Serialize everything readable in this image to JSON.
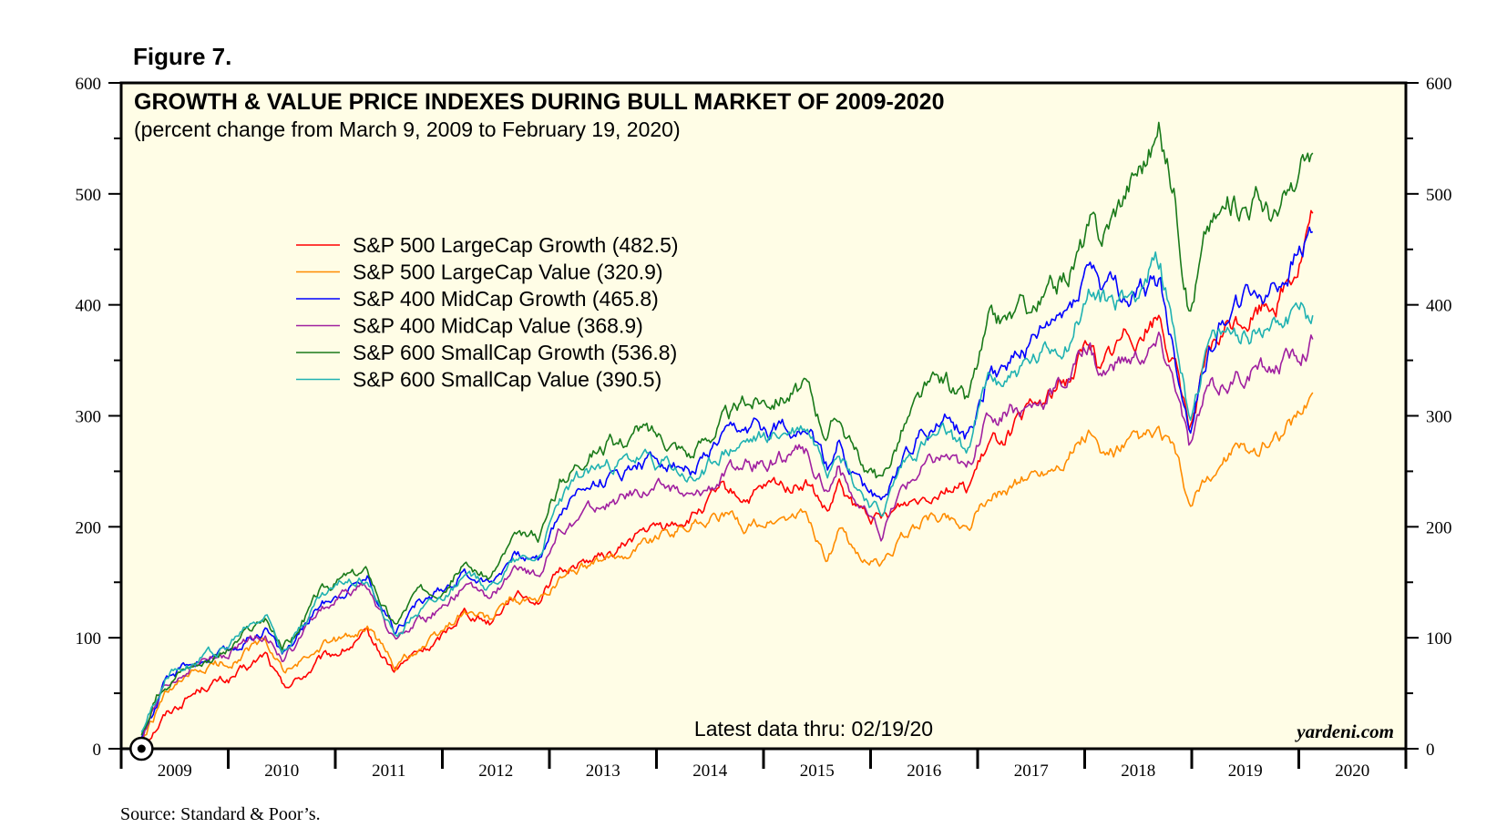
{
  "figure_label": "Figure 7.",
  "source": "Source: Standard & Poor’s.",
  "brand": "yardeni.com",
  "colors": {
    "plot_background": "#fffde6",
    "axis": "#000000"
  },
  "chart_data": {
    "type": "line",
    "title": "GROWTH & VALUE PRICE INDEXES DURING BULL MARKET OF 2009-2020",
    "subtitle": "(percent change from March 9, 2009 to February 19, 2020)",
    "note": "Latest data thru: 02/19/20",
    "xlabel": "",
    "ylabel": "",
    "xlim": [
      2009.0,
      2021.0
    ],
    "ylim": [
      0,
      600
    ],
    "y_ticks": [
      0,
      100,
      200,
      300,
      400,
      500,
      600
    ],
    "x_tick_labels": [
      "2009",
      "2010",
      "2011",
      "2012",
      "2013",
      "2014",
      "2015",
      "2016",
      "2017",
      "2018",
      "2019",
      "2020"
    ],
    "legend_position": "upper-left",
    "start_marker": {
      "x": 2009.19,
      "y": 0
    },
    "series": [
      {
        "name": "S&P 500 LargeCap Growth (482.5)",
        "color": "#ff0000",
        "x": [
          2009.19,
          2009.4,
          2009.6,
          2009.8,
          2010.0,
          2010.2,
          2010.35,
          2010.5,
          2010.65,
          2010.85,
          2011.1,
          2011.3,
          2011.55,
          2011.75,
          2011.95,
          2012.2,
          2012.45,
          2012.65,
          2012.9,
          2013.1,
          2013.35,
          2013.6,
          2013.85,
          2014.1,
          2014.35,
          2014.6,
          2014.85,
          2015.1,
          2015.4,
          2015.6,
          2015.7,
          2015.85,
          2016.1,
          2016.3,
          2016.5,
          2016.7,
          2016.9,
          2017.1,
          2017.35,
          2017.6,
          2017.85,
          2018.05,
          2018.15,
          2018.4,
          2018.7,
          2018.85,
          2018.98,
          2019.15,
          2019.35,
          2019.6,
          2019.8,
          2020.0,
          2020.13
        ],
        "y": [
          5,
          30,
          45,
          58,
          62,
          72,
          85,
          55,
          62,
          78,
          90,
          100,
          70,
          85,
          95,
          125,
          115,
          140,
          135,
          160,
          170,
          175,
          195,
          200,
          210,
          230,
          225,
          235,
          240,
          210,
          235,
          215,
          205,
          220,
          230,
          240,
          235,
          270,
          290,
          310,
          335,
          370,
          340,
          375,
          390,
          340,
          290,
          350,
          380,
          395,
          410,
          440,
          482.5
        ]
      },
      {
        "name": "S&P 500 LargeCap Value (320.9)",
        "color": "#ff8c00",
        "x": [
          2009.19,
          2009.4,
          2009.6,
          2009.8,
          2010.0,
          2010.2,
          2010.35,
          2010.5,
          2010.65,
          2010.85,
          2011.1,
          2011.3,
          2011.55,
          2011.75,
          2011.95,
          2012.2,
          2012.45,
          2012.65,
          2012.9,
          2013.1,
          2013.35,
          2013.6,
          2013.85,
          2014.1,
          2014.35,
          2014.6,
          2014.85,
          2015.1,
          2015.4,
          2015.6,
          2015.7,
          2015.85,
          2016.1,
          2016.3,
          2016.5,
          2016.7,
          2016.9,
          2017.1,
          2017.35,
          2017.6,
          2017.85,
          2018.05,
          2018.15,
          2018.4,
          2018.7,
          2018.85,
          2018.98,
          2019.15,
          2019.35,
          2019.6,
          2019.8,
          2020.0,
          2020.13
        ],
        "y": [
          5,
          45,
          60,
          72,
          78,
          90,
          95,
          70,
          75,
          90,
          100,
          110,
          75,
          90,
          100,
          125,
          115,
          135,
          130,
          155,
          165,
          170,
          185,
          195,
          205,
          210,
          200,
          205,
          210,
          170,
          195,
          175,
          165,
          190,
          205,
          210,
          200,
          225,
          240,
          250,
          265,
          285,
          260,
          270,
          280,
          265,
          215,
          240,
          265,
          270,
          285,
          300,
          320.9
        ]
      },
      {
        "name": "S&P 400 MidCap Growth (465.8)",
        "color": "#0000ff",
        "x": [
          2009.19,
          2009.4,
          2009.6,
          2009.8,
          2010.0,
          2010.2,
          2010.35,
          2010.5,
          2010.65,
          2010.85,
          2011.1,
          2011.3,
          2011.55,
          2011.75,
          2011.95,
          2012.2,
          2012.45,
          2012.65,
          2012.9,
          2013.1,
          2013.35,
          2013.6,
          2013.85,
          2014.1,
          2014.35,
          2014.6,
          2014.85,
          2015.1,
          2015.4,
          2015.6,
          2015.7,
          2015.85,
          2016.1,
          2016.3,
          2016.5,
          2016.7,
          2016.9,
          2017.1,
          2017.35,
          2017.6,
          2017.85,
          2018.05,
          2018.15,
          2018.4,
          2018.7,
          2018.85,
          2018.98,
          2019.15,
          2019.35,
          2019.6,
          2019.8,
          2020.0,
          2020.13
        ],
        "y": [
          10,
          55,
          75,
          82,
          85,
          100,
          110,
          85,
          100,
          130,
          145,
          155,
          110,
          130,
          140,
          160,
          150,
          175,
          170,
          215,
          240,
          245,
          260,
          260,
          250,
          275,
          285,
          290,
          295,
          250,
          275,
          245,
          220,
          265,
          290,
          295,
          280,
          335,
          355,
          370,
          395,
          440,
          420,
          405,
          420,
          350,
          290,
          360,
          400,
          410,
          420,
          445,
          465.8
        ]
      },
      {
        "name": "S&P 400 MidCap Value (368.9)",
        "color": "#a020a0",
        "x": [
          2009.19,
          2009.4,
          2009.6,
          2009.8,
          2010.0,
          2010.2,
          2010.35,
          2010.5,
          2010.65,
          2010.85,
          2011.1,
          2011.3,
          2011.55,
          2011.75,
          2011.95,
          2012.2,
          2012.45,
          2012.65,
          2012.9,
          2013.1,
          2013.35,
          2013.6,
          2013.85,
          2014.1,
          2014.35,
          2014.6,
          2014.85,
          2015.1,
          2015.4,
          2015.6,
          2015.7,
          2015.85,
          2016.1,
          2016.3,
          2016.5,
          2016.7,
          2016.9,
          2017.1,
          2017.35,
          2017.6,
          2017.85,
          2018.05,
          2018.15,
          2018.4,
          2018.7,
          2018.85,
          2018.98,
          2019.15,
          2019.35,
          2019.6,
          2019.8,
          2020.0,
          2020.13
        ],
        "y": [
          10,
          50,
          70,
          80,
          83,
          98,
          105,
          80,
          95,
          125,
          138,
          148,
          95,
          115,
          125,
          145,
          135,
          160,
          155,
          195,
          215,
          220,
          235,
          235,
          225,
          245,
          255,
          260,
          265,
          235,
          255,
          225,
          190,
          235,
          255,
          265,
          250,
          300,
          305,
          315,
          335,
          360,
          340,
          350,
          365,
          330,
          270,
          320,
          330,
          340,
          345,
          355,
          368.9
        ]
      },
      {
        "name": "S&P 600 SmallCap Growth (536.8)",
        "color": "#1a7a1a",
        "x": [
          2009.19,
          2009.4,
          2009.6,
          2009.8,
          2010.0,
          2010.2,
          2010.35,
          2010.5,
          2010.65,
          2010.85,
          2011.1,
          2011.3,
          2011.55,
          2011.75,
          2011.95,
          2012.2,
          2012.45,
          2012.65,
          2012.9,
          2013.1,
          2013.35,
          2013.6,
          2013.85,
          2014.1,
          2014.35,
          2014.6,
          2014.85,
          2015.1,
          2015.4,
          2015.6,
          2015.7,
          2015.85,
          2016.1,
          2016.3,
          2016.5,
          2016.7,
          2016.9,
          2017.1,
          2017.35,
          2017.6,
          2017.85,
          2018.05,
          2018.15,
          2018.4,
          2018.7,
          2018.85,
          2018.98,
          2019.15,
          2019.35,
          2019.6,
          2019.8,
          2020.0,
          2020.13
        ],
        "y": [
          12,
          60,
          75,
          82,
          88,
          105,
          118,
          90,
          105,
          140,
          155,
          160,
          110,
          140,
          145,
          165,
          155,
          185,
          190,
          240,
          270,
          275,
          285,
          280,
          265,
          295,
          310,
          320,
          325,
          285,
          305,
          265,
          240,
          290,
          320,
          330,
          310,
          380,
          390,
          400,
          430,
          470,
          460,
          510,
          555,
          500,
          400,
          470,
          490,
          500,
          480,
          510,
          536.8
        ]
      },
      {
        "name": "S&P 600 SmallCap Value (390.5)",
        "color": "#20b2b2",
        "x": [
          2009.19,
          2009.4,
          2009.6,
          2009.8,
          2010.0,
          2010.2,
          2010.35,
          2010.5,
          2010.65,
          2010.85,
          2011.1,
          2011.3,
          2011.55,
          2011.75,
          2011.95,
          2012.2,
          2012.45,
          2012.65,
          2012.9,
          2013.1,
          2013.35,
          2013.6,
          2013.85,
          2014.1,
          2014.35,
          2014.6,
          2014.85,
          2015.1,
          2015.4,
          2015.6,
          2015.7,
          2015.85,
          2016.1,
          2016.3,
          2016.5,
          2016.7,
          2016.9,
          2017.1,
          2017.35,
          2017.6,
          2017.85,
          2018.05,
          2018.15,
          2018.4,
          2018.7,
          2018.85,
          2018.98,
          2019.15,
          2019.35,
          2019.6,
          2019.8,
          2020.0,
          2020.13
        ],
        "y": [
          15,
          62,
          78,
          85,
          92,
          112,
          120,
          92,
          108,
          135,
          150,
          155,
          100,
          125,
          135,
          155,
          145,
          170,
          175,
          225,
          250,
          255,
          260,
          255,
          240,
          265,
          275,
          280,
          290,
          255,
          280,
          240,
          210,
          255,
          275,
          280,
          265,
          330,
          340,
          350,
          370,
          410,
          400,
          405,
          440,
          370,
          300,
          360,
          370,
          380,
          390,
          400,
          390.5
        ]
      }
    ]
  }
}
